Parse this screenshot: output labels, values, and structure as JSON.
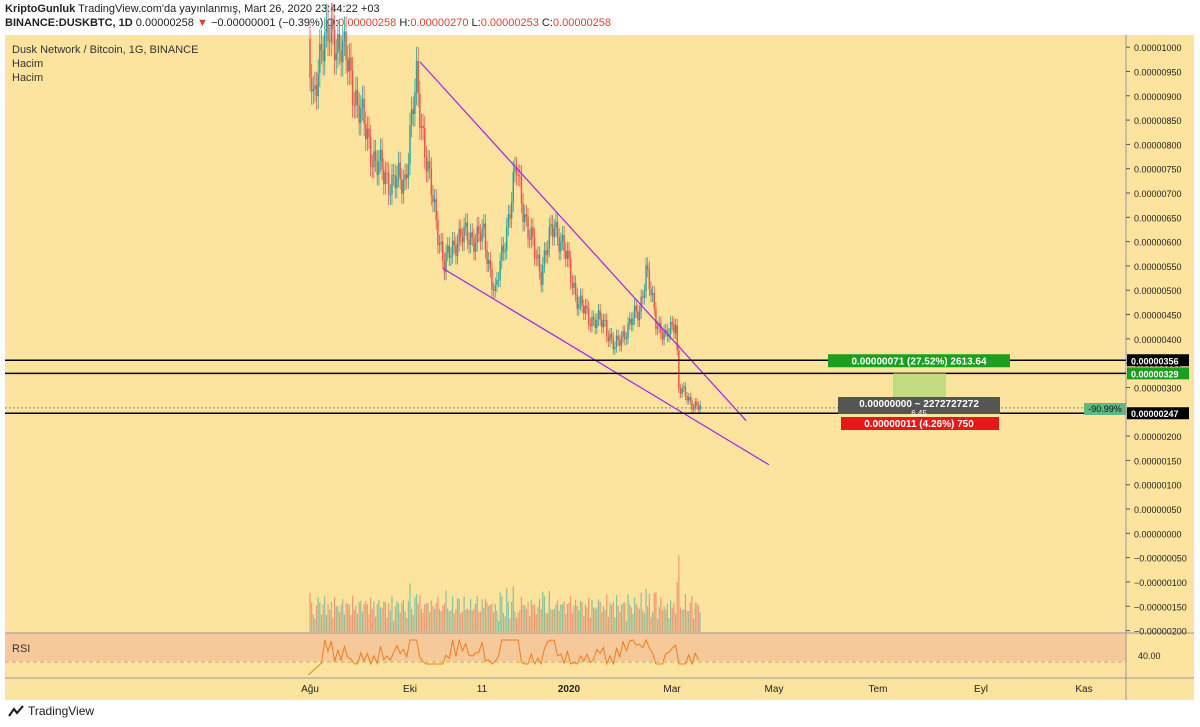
{
  "header": {
    "author": "KriptoGunluk",
    "published": "TradingView.com'da yayınlanmış, Mart 26, 2020 23:44:22 +03",
    "symbol": "BINANCE:DUSKBTC, 1D",
    "last": "0.00000258",
    "change": "−0.00000001 (−0.39%)",
    "o_label": "O:",
    "o": "0.00000258",
    "h_label": "H:",
    "h": "0.00000270",
    "l_label": "L:",
    "l": "0.00000253",
    "c_label": "C:",
    "c": "0.00000258"
  },
  "legend": {
    "title": "Dusk Network / Bitcoin, 1G, BINANCE",
    "vol1": "Hacim",
    "vol2": "Hacim",
    "rsi": "RSI"
  },
  "colors": {
    "background": "#fde49e",
    "rsi_band": "#f6c99a",
    "up": "#26a69a",
    "down": "#ef5350",
    "trendline": "#a020f0",
    "rsi_line": "#f07c1e",
    "hline": "#000000",
    "target_green": "#19a01e",
    "stop_red": "#e81818",
    "info_gray": "#555555"
  },
  "chart_data": {
    "type": "candlestick",
    "title": "Dusk Network / Bitcoin, 1G, BINANCE",
    "x_ticks": [
      "Ağu",
      "Eki",
      "11",
      "2020",
      "Mar",
      "May",
      "Tem",
      "Eyl",
      "Kas"
    ],
    "price_axis": {
      "range": [
        -2.05e-06,
        1.025e-05
      ],
      "ticks": [
        "0.00001000",
        "0.00000950",
        "0.00000900",
        "0.00000850",
        "0.00000800",
        "0.00000750",
        "0.00000700",
        "0.00000650",
        "0.00000600",
        "0.00000550",
        "0.00000500",
        "0.00000450",
        "0.00000400",
        "0.00000350",
        "0.00000300",
        "0.00000250",
        "0.00000200",
        "0.00000150",
        "0.00000100",
        "0.00000050",
        "0.00000000",
        "−0.00000050",
        "−0.00000100",
        "−0.00000150",
        "−0.00000200"
      ]
    },
    "price_path": [
      {
        "date": "2019-07-31",
        "close": 9.9e-06
      },
      {
        "date": "2019-08-03",
        "close": 8.7e-06
      },
      {
        "date": "2019-08-08",
        "close": 1.02e-05
      },
      {
        "date": "2019-08-20",
        "close": 1.01e-05
      },
      {
        "date": "2019-09-01",
        "close": 8.6e-06
      },
      {
        "date": "2019-09-10",
        "close": 7.6e-06
      },
      {
        "date": "2019-09-20",
        "close": 7.2e-06
      },
      {
        "date": "2019-09-28",
        "close": 7.3e-06
      },
      {
        "date": "2019-10-05",
        "close": 9.3e-06
      },
      {
        "date": "2019-10-12",
        "close": 7.4e-06
      },
      {
        "date": "2019-10-22",
        "close": 5.5e-06
      },
      {
        "date": "2019-10-30",
        "close": 6.1e-06
      },
      {
        "date": "2019-11-15",
        "close": 6.1e-06
      },
      {
        "date": "2019-11-22",
        "close": 4.9e-06
      },
      {
        "date": "2019-12-05",
        "close": 7.5e-06
      },
      {
        "date": "2019-12-12",
        "close": 6.2e-06
      },
      {
        "date": "2019-12-20",
        "close": 5.4e-06
      },
      {
        "date": "2019-12-28",
        "close": 6.4e-06
      },
      {
        "date": "2020-01-05",
        "close": 5.6e-06
      },
      {
        "date": "2020-01-12",
        "close": 4.7e-06
      },
      {
        "date": "2020-01-20",
        "close": 4.4e-06
      },
      {
        "date": "2020-01-28",
        "close": 4.3e-06
      },
      {
        "date": "2020-02-03",
        "close": 3.8e-06
      },
      {
        "date": "2020-02-10",
        "close": 4.2e-06
      },
      {
        "date": "2020-02-18",
        "close": 4.6e-06
      },
      {
        "date": "2020-02-22",
        "close": 5.4e-06
      },
      {
        "date": "2020-02-28",
        "close": 4.4e-06
      },
      {
        "date": "2020-03-05",
        "close": 4e-06
      },
      {
        "date": "2020-03-11",
        "close": 4.4e-06
      },
      {
        "date": "2020-03-13",
        "close": 3e-06
      },
      {
        "date": "2020-03-20",
        "close": 2.7e-06
      },
      {
        "date": "2020-03-26",
        "close": 2.58e-06
      }
    ],
    "trendlines": [
      {
        "from": {
          "date": "2019-10-07",
          "price": 9.7e-06
        },
        "to": {
          "date": "2020-04-23",
          "price": 2.32e-06
        }
      },
      {
        "from": {
          "date": "2019-10-21",
          "price": 5.45e-06
        },
        "to": {
          "date": "2020-05-07",
          "price": 1.41e-06
        }
      }
    ],
    "horizontal_levels": [
      "0.00000356",
      "0.00000329",
      "0.00000247"
    ],
    "position_tool": {
      "target": "0.00000071 (27.52%) 2613.64",
      "info": "0.00000000 ~ 2272727272",
      "info_sub": "6.45",
      "stop": "0.00000011 (4.26%) 750",
      "pct_badge": "-90.99%"
    },
    "rsi": {
      "label": "RSI",
      "level": "40.00"
    }
  }
}
